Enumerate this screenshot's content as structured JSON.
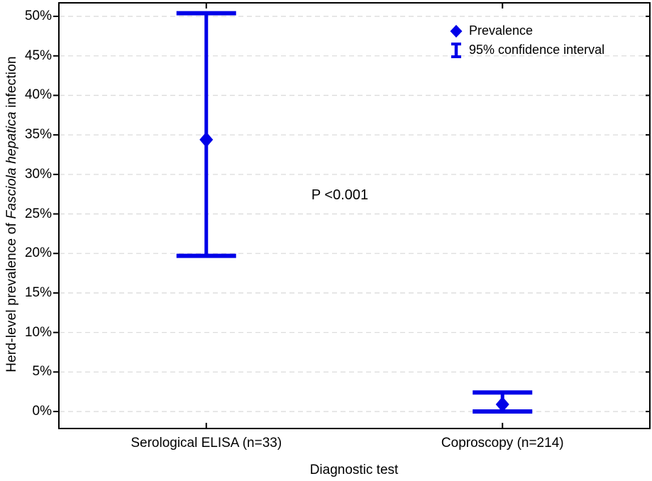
{
  "figure": {
    "y_axis_title_prefix": "Herd-level prevalence of ",
    "y_axis_title_italic": "Fasciola hepatica",
    "y_axis_title_suffix": " infection",
    "x_axis_title": "Diagnostic test",
    "annotation": "P <0.001"
  },
  "legend": {
    "prevalence_label": "Prevalence",
    "ci_label": "95% confidence interval"
  },
  "colors": {
    "accent": "#0000E8",
    "grid": "#DCDCDC",
    "axis": "#000000",
    "text": "#000000"
  },
  "chart_data": {
    "type": "scatter",
    "variant": "point-estimate-with-95ci-error-bars",
    "title": "",
    "xlabel": "Diagnostic test",
    "ylabel": "Herd-level prevalence of Fasciola hepatica infection",
    "categories": [
      "Serological ELISA (n=33)",
      "Coproscopy (n=214)"
    ],
    "series": [
      {
        "name": "Prevalence",
        "unit": "%",
        "values": [
          34.4,
          0.9
        ],
        "ci95_low": [
          19.7,
          0.0
        ],
        "ci95_high": [
          50.4,
          2.4
        ]
      }
    ],
    "annotation": "P <0.001",
    "ylim": [
      -2.24,
      51.8
    ],
    "ytick_values": [
      0,
      5,
      10,
      15,
      20,
      25,
      30,
      35,
      40,
      45,
      50
    ],
    "ytick_labels": [
      "0%",
      "5%",
      "10%",
      "15%",
      "20%",
      "25%",
      "30%",
      "35%",
      "40%",
      "45%",
      "50%"
    ],
    "grid": "horizontal-dashed",
    "legend_position": "top-right-inside",
    "legend_entries": [
      "Prevalence",
      "95% confidence interval"
    ]
  }
}
